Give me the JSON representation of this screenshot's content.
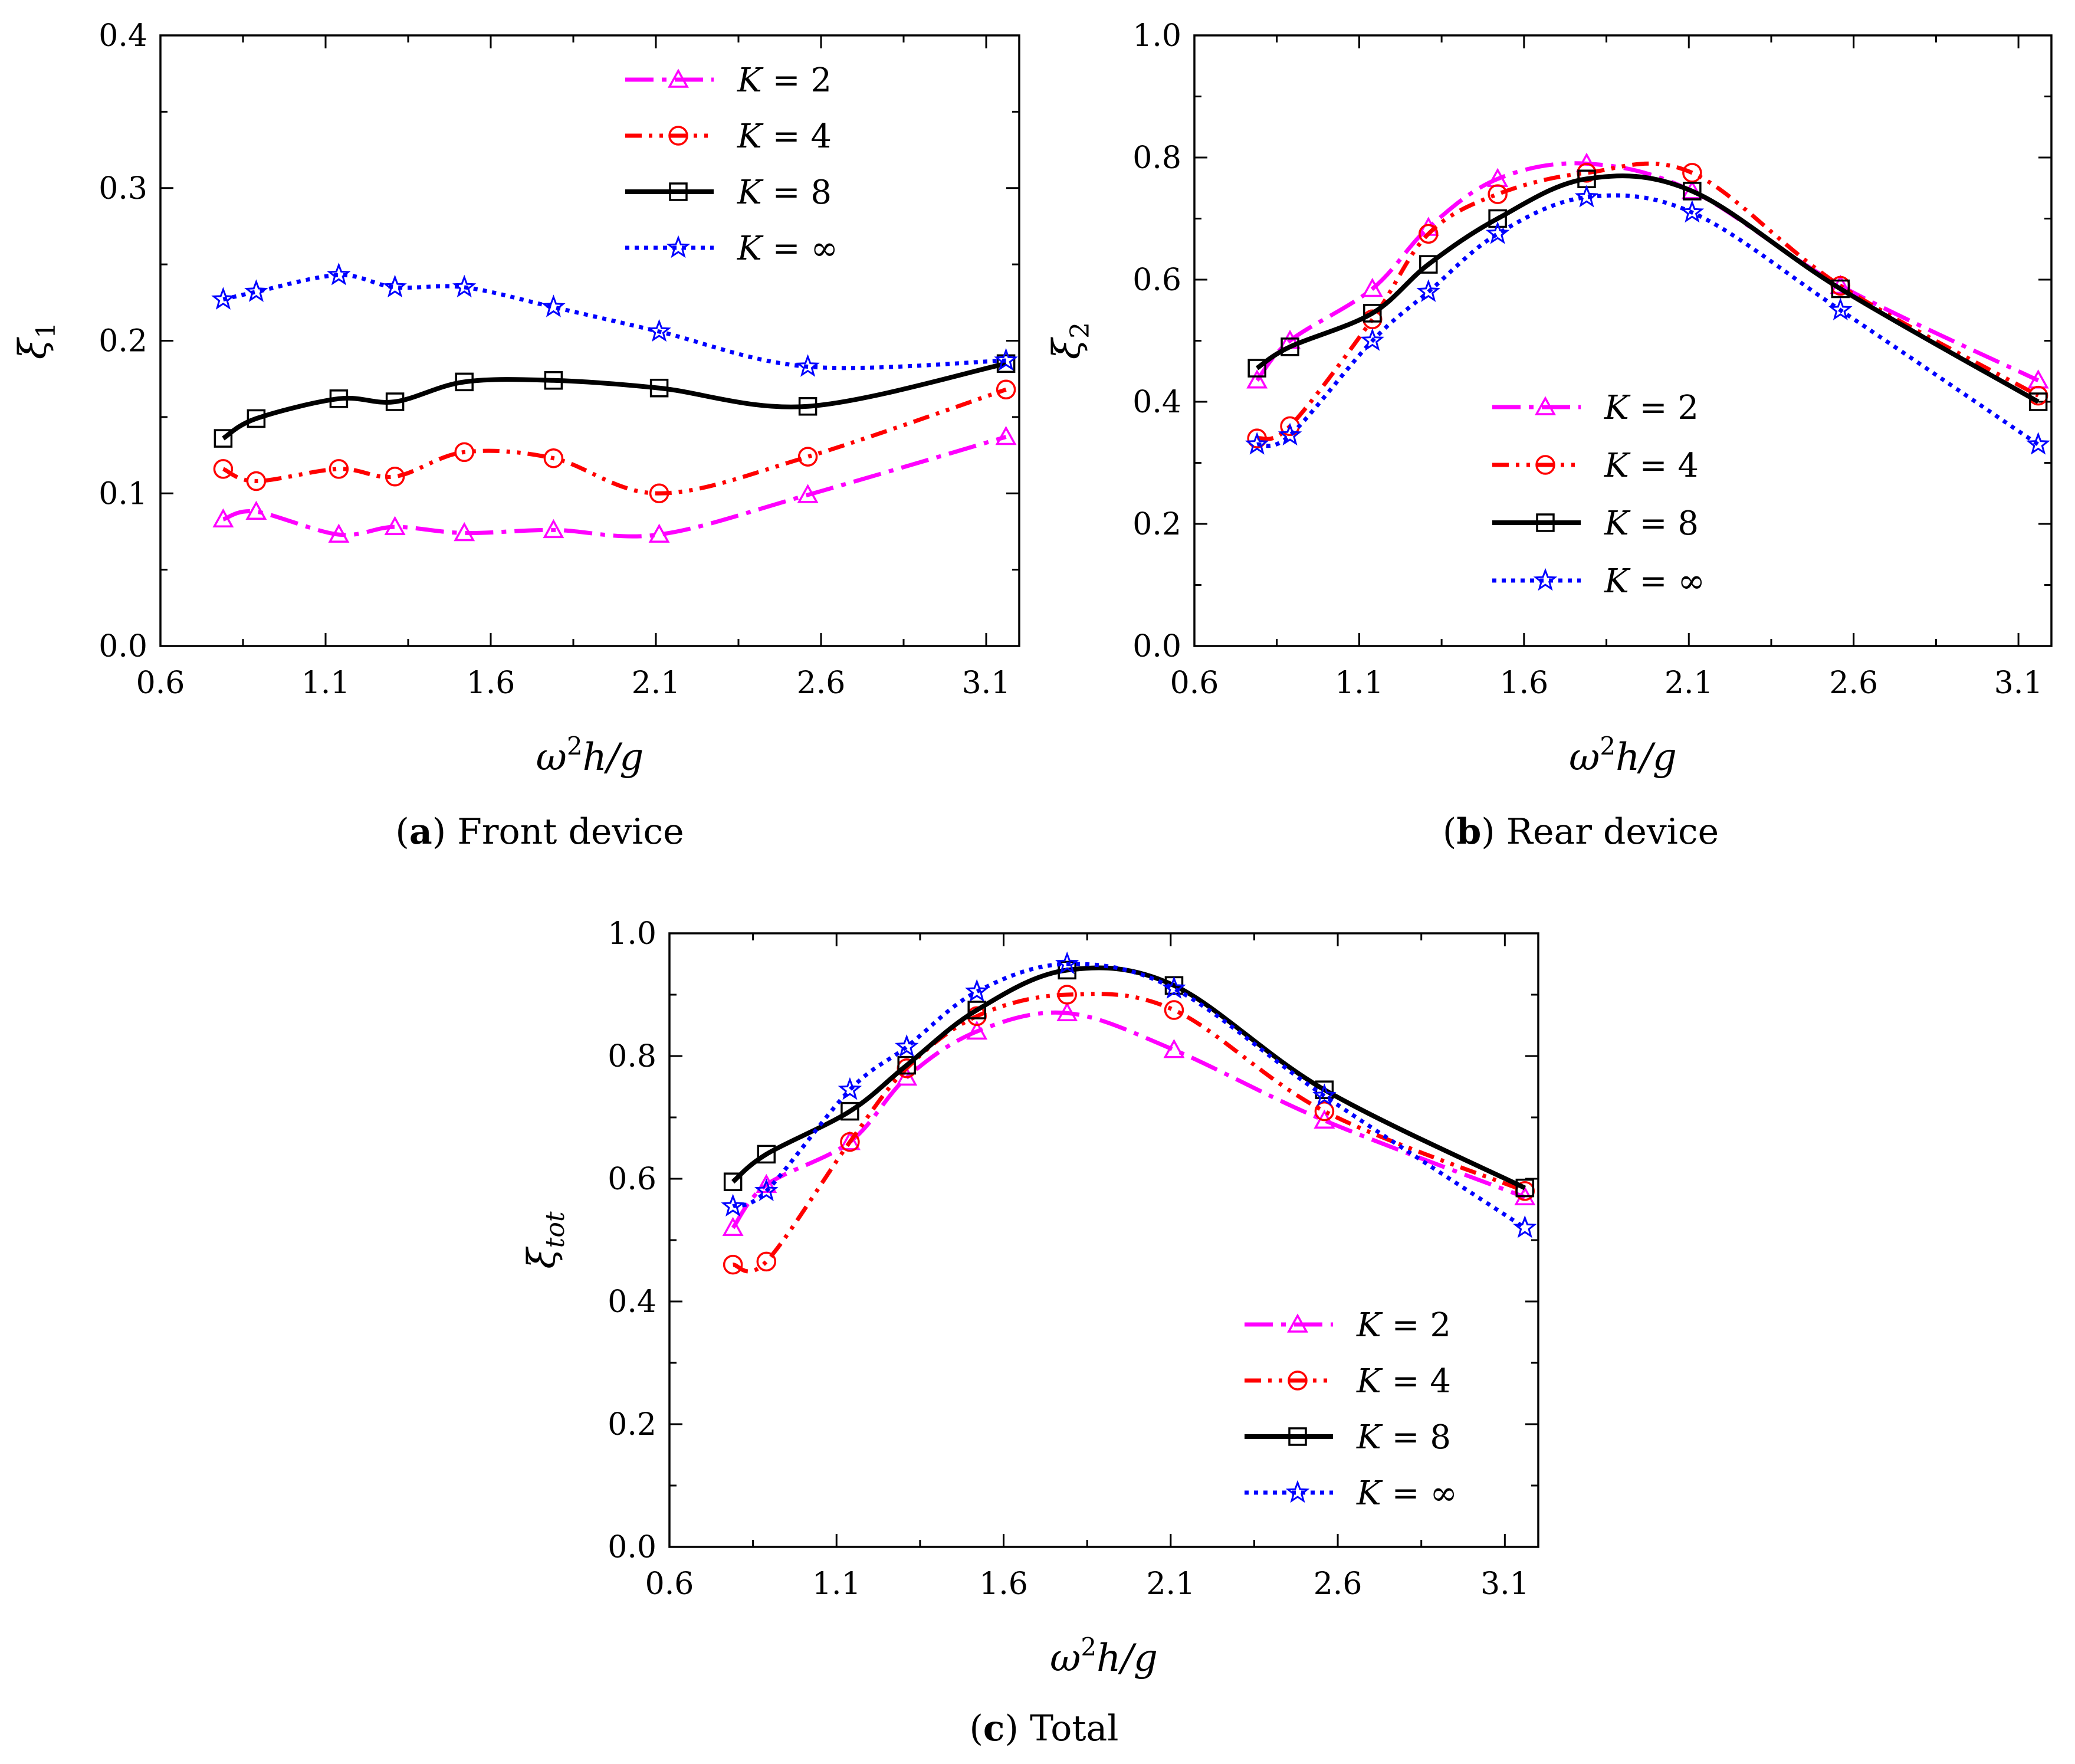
{
  "figure": {
    "caption_a": {
      "letter": "a",
      "text": "Front device"
    },
    "caption_b": {
      "letter": "b",
      "text": "Rear device"
    },
    "caption_c": {
      "letter": "c",
      "text": "Total"
    }
  },
  "legend": {
    "k_symbol": "K",
    "eq": " = "
  },
  "chart_data": [
    {
      "id": "a",
      "type": "line",
      "title": "Front device",
      "xlabel": "ω²h/g",
      "ylabel": "ξ1",
      "xlim": [
        0.6,
        3.2
      ],
      "ylim": [
        0.0,
        0.4
      ],
      "xticks": [
        0.6,
        1.1,
        1.6,
        2.1,
        2.6,
        3.1
      ],
      "yticks": [
        0.0,
        0.1,
        0.2,
        0.3,
        0.4
      ],
      "ytick_labels": [
        "0.0",
        "0.1",
        "0.2",
        "0.3",
        "0.4"
      ],
      "legend_position": "top-right",
      "series": [
        {
          "name": "K = 2",
          "k": "2",
          "color": "#ff00ff",
          "marker": "triangle",
          "dash": "long-dash-dot",
          "x": [
            0.79,
            0.89,
            1.14,
            1.31,
            1.52,
            1.79,
            2.11,
            2.56,
            3.16
          ],
          "y": [
            0.083,
            0.088,
            0.073,
            0.078,
            0.074,
            0.076,
            0.073,
            0.099,
            0.137
          ]
        },
        {
          "name": "K = 4",
          "k": "4",
          "color": "#ff0000",
          "marker": "circle",
          "dash": "dash-dot-dot",
          "x": [
            0.79,
            0.89,
            1.14,
            1.31,
            1.52,
            1.79,
            2.11,
            2.56,
            3.16
          ],
          "y": [
            0.116,
            0.108,
            0.116,
            0.111,
            0.127,
            0.123,
            0.1,
            0.124,
            0.168
          ]
        },
        {
          "name": "K = 8",
          "k": "8",
          "color": "#000000",
          "marker": "square",
          "dash": "solid",
          "x": [
            0.79,
            0.89,
            1.14,
            1.31,
            1.52,
            1.79,
            2.11,
            2.56,
            3.16
          ],
          "y": [
            0.136,
            0.149,
            0.162,
            0.16,
            0.173,
            0.174,
            0.169,
            0.157,
            0.185
          ]
        },
        {
          "name": "K = ∞",
          "k": "∞",
          "color": "#0000ff",
          "marker": "star",
          "dash": "dot",
          "x": [
            0.79,
            0.89,
            1.14,
            1.31,
            1.52,
            1.79,
            2.11,
            2.56,
            3.16
          ],
          "y": [
            0.227,
            0.232,
            0.243,
            0.235,
            0.235,
            0.222,
            0.206,
            0.183,
            0.187
          ]
        }
      ]
    },
    {
      "id": "b",
      "type": "line",
      "title": "Rear device",
      "xlabel": "ω²h/g",
      "ylabel": "ξ2",
      "xlim": [
        0.6,
        3.2
      ],
      "ylim": [
        0.0,
        1.0
      ],
      "xticks": [
        0.6,
        1.1,
        1.6,
        2.1,
        2.6,
        3.1
      ],
      "yticks": [
        0.0,
        0.2,
        0.4,
        0.6,
        0.8,
        1.0
      ],
      "ytick_labels": [
        "0.0",
        "0.2",
        "0.4",
        "0.6",
        "0.8",
        "1.0"
      ],
      "legend_position": "bottom-right",
      "series": [
        {
          "name": "K = 2",
          "k": "2",
          "color": "#ff00ff",
          "marker": "triangle",
          "dash": "long-dash-dot",
          "x": [
            0.79,
            0.89,
            1.14,
            1.31,
            1.52,
            1.79,
            2.11,
            2.56,
            3.16
          ],
          "y": [
            0.435,
            0.5,
            0.585,
            0.685,
            0.765,
            0.79,
            0.745,
            0.59,
            0.435
          ]
        },
        {
          "name": "K = 4",
          "k": "4",
          "color": "#ff0000",
          "marker": "circle",
          "dash": "dash-dot-dot",
          "x": [
            0.79,
            0.89,
            1.14,
            1.31,
            1.52,
            1.79,
            2.11,
            2.56,
            3.16
          ],
          "y": [
            0.34,
            0.36,
            0.535,
            0.675,
            0.74,
            0.775,
            0.775,
            0.59,
            0.41
          ]
        },
        {
          "name": "K = 8",
          "k": "8",
          "color": "#000000",
          "marker": "square",
          "dash": "solid",
          "x": [
            0.79,
            0.89,
            1.14,
            1.31,
            1.52,
            1.79,
            2.11,
            2.56,
            3.16
          ],
          "y": [
            0.455,
            0.49,
            0.545,
            0.625,
            0.7,
            0.765,
            0.745,
            0.585,
            0.4
          ]
        },
        {
          "name": "K = ∞",
          "k": "∞",
          "color": "#0000ff",
          "marker": "star",
          "dash": "dot",
          "x": [
            0.79,
            0.89,
            1.14,
            1.31,
            1.52,
            1.79,
            2.11,
            2.56,
            3.16
          ],
          "y": [
            0.33,
            0.345,
            0.5,
            0.58,
            0.675,
            0.735,
            0.71,
            0.55,
            0.33
          ]
        }
      ]
    },
    {
      "id": "c",
      "type": "line",
      "title": "Total",
      "xlabel": "ω²h/g",
      "ylabel": "ξtot",
      "xlim": [
        0.6,
        3.2
      ],
      "ylim": [
        0.0,
        1.0
      ],
      "xticks": [
        0.6,
        1.1,
        1.6,
        2.1,
        2.6,
        3.1
      ],
      "yticks": [
        0.0,
        0.2,
        0.4,
        0.6,
        0.8,
        1.0
      ],
      "ytick_labels": [
        "0.0",
        "0.2",
        "0.4",
        "0.6",
        "0.8",
        "1.0"
      ],
      "legend_position": "bottom-right",
      "series": [
        {
          "name": "K = 2",
          "k": "2",
          "color": "#ff00ff",
          "marker": "triangle",
          "dash": "long-dash-dot",
          "x": [
            0.79,
            0.89,
            1.14,
            1.31,
            1.52,
            1.79,
            2.11,
            2.56,
            3.16
          ],
          "y": [
            0.52,
            0.59,
            0.66,
            0.765,
            0.84,
            0.87,
            0.81,
            0.695,
            0.57
          ]
        },
        {
          "name": "K = 4",
          "k": "4",
          "color": "#ff0000",
          "marker": "circle",
          "dash": "dash-dot-dot",
          "x": [
            0.79,
            0.89,
            1.14,
            1.31,
            1.52,
            1.79,
            2.11,
            2.56,
            3.16
          ],
          "y": [
            0.46,
            0.465,
            0.66,
            0.78,
            0.865,
            0.9,
            0.875,
            0.71,
            0.58
          ]
        },
        {
          "name": "K = 8",
          "k": "8",
          "color": "#000000",
          "marker": "square",
          "dash": "solid",
          "x": [
            0.79,
            0.89,
            1.14,
            1.31,
            1.52,
            1.79,
            2.11,
            2.56,
            3.16
          ],
          "y": [
            0.595,
            0.64,
            0.71,
            0.785,
            0.875,
            0.94,
            0.915,
            0.745,
            0.585
          ]
        },
        {
          "name": "K = ∞",
          "k": "∞",
          "color": "#0000ff",
          "marker": "star",
          "dash": "dot",
          "x": [
            0.79,
            0.89,
            1.14,
            1.31,
            1.52,
            1.79,
            2.11,
            2.56,
            3.16
          ],
          "y": [
            0.555,
            0.58,
            0.745,
            0.815,
            0.905,
            0.95,
            0.91,
            0.735,
            0.52
          ]
        }
      ]
    }
  ]
}
